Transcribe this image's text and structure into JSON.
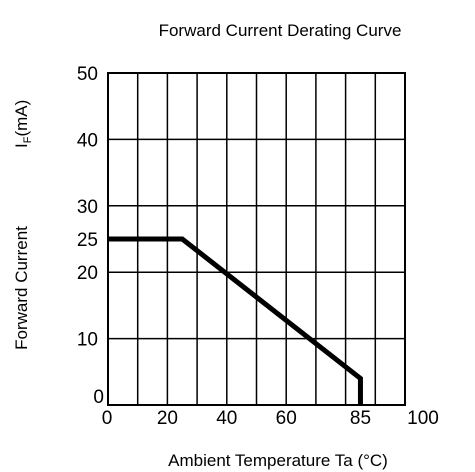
{
  "chart_data": {
    "type": "line",
    "title": "Forward Current Derating Curve",
    "xlabel": "Ambient Temperature Ta (°C)",
    "ylabel": {
      "text": "Forward Current",
      "symbol": "I",
      "subscript": "F",
      "unit": "(mA)"
    },
    "xlim": [
      0,
      100
    ],
    "ylim": [
      0,
      50
    ],
    "x_tick_labels": [
      {
        "value": 0,
        "label": "0"
      },
      {
        "value": 20,
        "label": "20"
      },
      {
        "value": 40,
        "label": "40"
      },
      {
        "value": 60,
        "label": "60"
      },
      {
        "value": 85,
        "label": "85"
      },
      {
        "value": 100,
        "label": "100"
      }
    ],
    "y_tick_labels": [
      {
        "value": 0,
        "label": "0"
      },
      {
        "value": 10,
        "label": "10"
      },
      {
        "value": 20,
        "label": "20"
      },
      {
        "value": 25,
        "label": "25"
      },
      {
        "value": 30,
        "label": "30"
      },
      {
        "value": 40,
        "label": "40"
      },
      {
        "value": 50,
        "label": "50"
      }
    ],
    "x_gridlines": [
      10,
      20,
      30,
      40,
      50,
      60,
      70,
      80,
      90
    ],
    "y_gridlines": [
      10,
      20,
      30,
      40
    ],
    "grid": true,
    "series": [
      {
        "x": [
          0,
          25,
          85,
          85
        ],
        "y": [
          25,
          25,
          4,
          0
        ],
        "color": "#000000"
      }
    ]
  }
}
